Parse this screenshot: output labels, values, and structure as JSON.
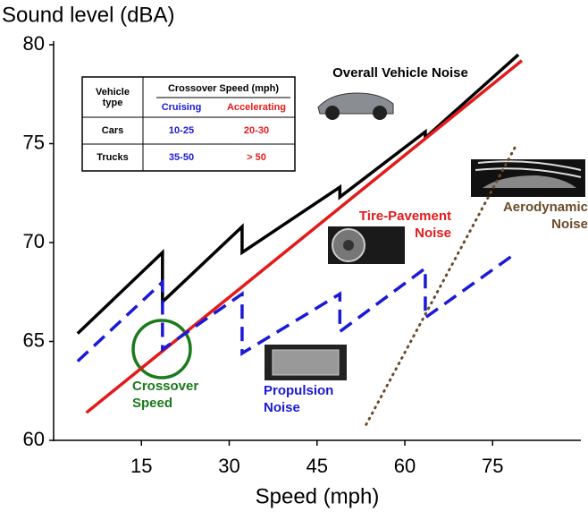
{
  "chart_data": {
    "type": "line",
    "y_label": "Sound level (dBA)",
    "x_label": "Speed (mph)",
    "xlim": [
      0,
      90
    ],
    "ylim": [
      60,
      80
    ],
    "xticks": [
      15,
      30,
      45,
      60,
      75
    ],
    "yticks": [
      60,
      65,
      70,
      75,
      80
    ],
    "series": [
      {
        "name": "Overall Vehicle Noise",
        "color": "#000000",
        "style": "solid",
        "x": [
          4.1,
          18.6,
          18.6,
          32.2,
          32.2,
          48.9,
          48.9,
          63.5,
          63.5,
          79.4
        ],
        "values": [
          65.4,
          69.5,
          67.0,
          70.8,
          69.5,
          72.8,
          72.3,
          75.6,
          75.3,
          79.5
        ]
      },
      {
        "name": "Tire-Pavement Noise",
        "color": "#e31a1a",
        "style": "solid",
        "x": [
          5.6,
          80
        ],
        "values": [
          61.4,
          79.2
        ]
      },
      {
        "name": "Propulsion Noise",
        "color": "#1a1ad6",
        "style": "dashed",
        "x": [
          4.1,
          18.6,
          18.6,
          32.2,
          32.2,
          48.9,
          48.9,
          63.5,
          63.5,
          78.2
        ],
        "values": [
          64.0,
          68.0,
          64.6,
          67.4,
          64.4,
          67.4,
          65.5,
          68.7,
          66.2,
          69.3
        ]
      },
      {
        "name": "Aerodynamic Noise",
        "color": "#6b4a2a",
        "style": "dotted",
        "x": [
          53.4,
          78.8
        ],
        "values": [
          60.8,
          74.8
        ]
      }
    ],
    "annotations": [
      {
        "text": "Crossover Speed",
        "color": "#1b7a1b"
      }
    ],
    "table": {
      "header": [
        "Vehicle type",
        "Crossover Speed (mph)"
      ],
      "subheader": [
        "Cruising",
        "Accelerating"
      ],
      "rows": [
        [
          "Cars",
          "10-25",
          "20-30"
        ],
        [
          "Trucks",
          "35-50",
          "> 50"
        ]
      ]
    }
  }
}
